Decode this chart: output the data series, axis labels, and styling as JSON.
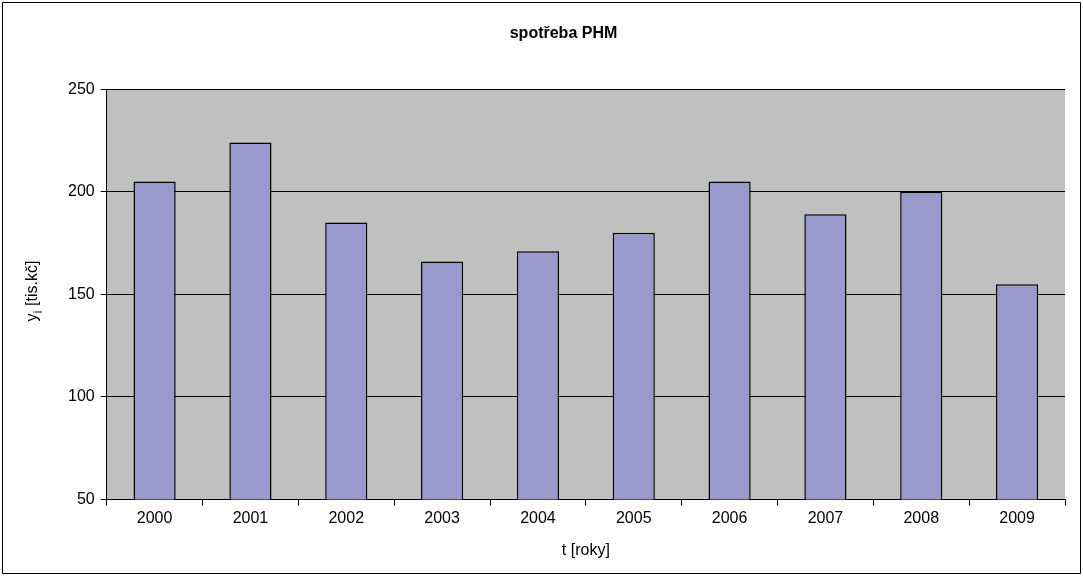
{
  "chart_data": {
    "type": "bar",
    "title": "spotřeba PHM",
    "xlabel": "t [roky]",
    "ylabel": "y$_{i}$ [tis.kč]",
    "categories": [
      "2000",
      "2001",
      "2002",
      "2003",
      "2004",
      "2005",
      "2006",
      "2007",
      "2008",
      "2009"
    ],
    "values": [
      205,
      224,
      185,
      166,
      171,
      180,
      205,
      189,
      200,
      155
    ],
    "color": "#9999cc",
    "ylim": [
      50,
      250
    ],
    "yticks": [
      50,
      100,
      150,
      200,
      250
    ],
    "grid": "y",
    "legend": false
  }
}
